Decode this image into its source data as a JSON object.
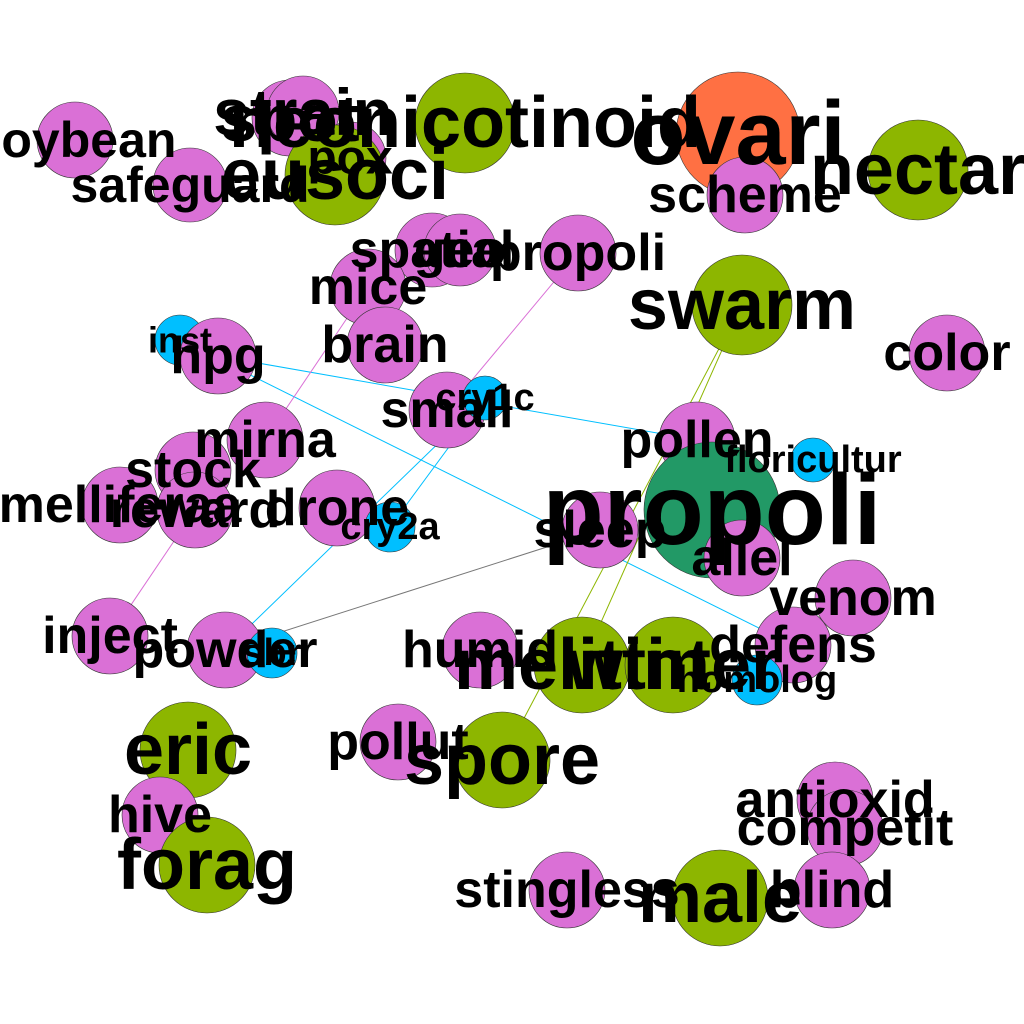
{
  "colors": {
    "pink": "#da70d6",
    "green": "#8db600",
    "cyan": "#00bfff",
    "orange": "#ff7043",
    "teal": "#229966",
    "edge_cyan": "#00bfff",
    "edge_pink": "#da70d6",
    "edge_olive": "#8db600",
    "edge_gray": "#777777"
  },
  "nodes": [
    {
      "id": "soybean",
      "label": "soybean",
      "color": "pink"
    },
    {
      "id": "safeguard",
      "label": "safeguard",
      "color": "pink"
    },
    {
      "id": "spot",
      "label": "spot",
      "color": "pink"
    },
    {
      "id": "strain",
      "label": "strain",
      "color": "pink"
    },
    {
      "id": "pox",
      "label": "pox",
      "color": "pink"
    },
    {
      "id": "eusoci",
      "label": "eusoci",
      "color": "green"
    },
    {
      "id": "neonicotinoid",
      "label": "neonicotinoid",
      "color": "green"
    },
    {
      "id": "ovari",
      "label": "ovari",
      "color": "orange"
    },
    {
      "id": "nectar",
      "label": "nectar",
      "color": "green"
    },
    {
      "id": "scheme",
      "label": "scheme",
      "color": "pink"
    },
    {
      "id": "spatial",
      "label": "spatial",
      "color": "pink"
    },
    {
      "id": "geo",
      "label": "geo",
      "color": "pink"
    },
    {
      "id": "propoli2",
      "label": "propoli",
      "color": "pink"
    },
    {
      "id": "swarm",
      "label": "swarm",
      "color": "green"
    },
    {
      "id": "mice",
      "label": "mice",
      "color": "pink"
    },
    {
      "id": "color",
      "label": "color",
      "color": "pink"
    },
    {
      "id": "inst",
      "label": "inst",
      "color": "cyan"
    },
    {
      "id": "hpg",
      "label": "hpg",
      "color": "pink"
    },
    {
      "id": "brain",
      "label": "brain",
      "color": "pink"
    },
    {
      "id": "small",
      "label": "small",
      "color": "pink"
    },
    {
      "id": "cry1c",
      "label": "cry1c",
      "color": "cyan"
    },
    {
      "id": "pollen",
      "label": "pollen",
      "color": "pink"
    },
    {
      "id": "floricultur",
      "label": "floricultur",
      "color": "cyan"
    },
    {
      "id": "propoli",
      "label": "propoli",
      "color": "teal"
    },
    {
      "id": "mirna",
      "label": "mirna",
      "color": "pink"
    },
    {
      "id": "stock",
      "label": "stock",
      "color": "pink"
    },
    {
      "id": "melliferaa",
      "label": "melliferaa",
      "color": "pink"
    },
    {
      "id": "reward",
      "label": "reward",
      "color": "pink"
    },
    {
      "id": "drone",
      "label": "drone",
      "color": "pink"
    },
    {
      "id": "cry2a",
      "label": "cry2a",
      "color": "cyan"
    },
    {
      "id": "sleep",
      "label": "sleep",
      "color": "pink"
    },
    {
      "id": "allel",
      "label": "allel",
      "color": "pink"
    },
    {
      "id": "venom",
      "label": "venom",
      "color": "pink"
    },
    {
      "id": "inject",
      "label": "inject",
      "color": "pink"
    },
    {
      "id": "powder",
      "label": "powder",
      "color": "pink"
    },
    {
      "id": "sbr",
      "label": "sbr",
      "color": "cyan"
    },
    {
      "id": "humid",
      "label": "humid",
      "color": "pink"
    },
    {
      "id": "melittin",
      "label": "melittin",
      "color": "green"
    },
    {
      "id": "winter",
      "label": "winter",
      "color": "green"
    },
    {
      "id": "defens",
      "label": "defens",
      "color": "pink"
    },
    {
      "id": "homolog",
      "label": "homolog",
      "color": "cyan"
    },
    {
      "id": "eric",
      "label": "eric",
      "color": "green"
    },
    {
      "id": "pollut",
      "label": "pollut",
      "color": "pink"
    },
    {
      "id": "spore",
      "label": "spore",
      "color": "green"
    },
    {
      "id": "hive",
      "label": "hive",
      "color": "pink"
    },
    {
      "id": "forag",
      "label": "forag",
      "color": "green"
    },
    {
      "id": "antioxid",
      "label": "antioxid",
      "color": "pink"
    },
    {
      "id": "competit",
      "label": "competit",
      "color": "pink"
    },
    {
      "id": "stingless",
      "label": "stingless",
      "color": "pink"
    },
    {
      "id": "male",
      "label": "male",
      "color": "green"
    },
    {
      "id": "blind",
      "label": "blind",
      "color": "pink"
    }
  ],
  "edges": [
    {
      "source": "hpg",
      "target": "pollen",
      "color": "edge_cyan"
    },
    {
      "source": "inst",
      "target": "defens",
      "color": "edge_cyan"
    },
    {
      "source": "cry1c",
      "target": "powder",
      "color": "edge_cyan"
    },
    {
      "source": "cry1c",
      "target": "cry2a",
      "color": "edge_cyan"
    },
    {
      "source": "propoli2",
      "target": "small",
      "color": "edge_pink"
    },
    {
      "source": "mirna",
      "target": "mice",
      "color": "edge_pink"
    },
    {
      "source": "inject",
      "target": "reward",
      "color": "edge_pink"
    },
    {
      "source": "swarm",
      "target": "spore",
      "color": "edge_olive"
    },
    {
      "source": "swarm",
      "target": "melittin",
      "color": "edge_olive"
    },
    {
      "source": "powder",
      "target": "sleep",
      "color": "edge_gray"
    }
  ]
}
